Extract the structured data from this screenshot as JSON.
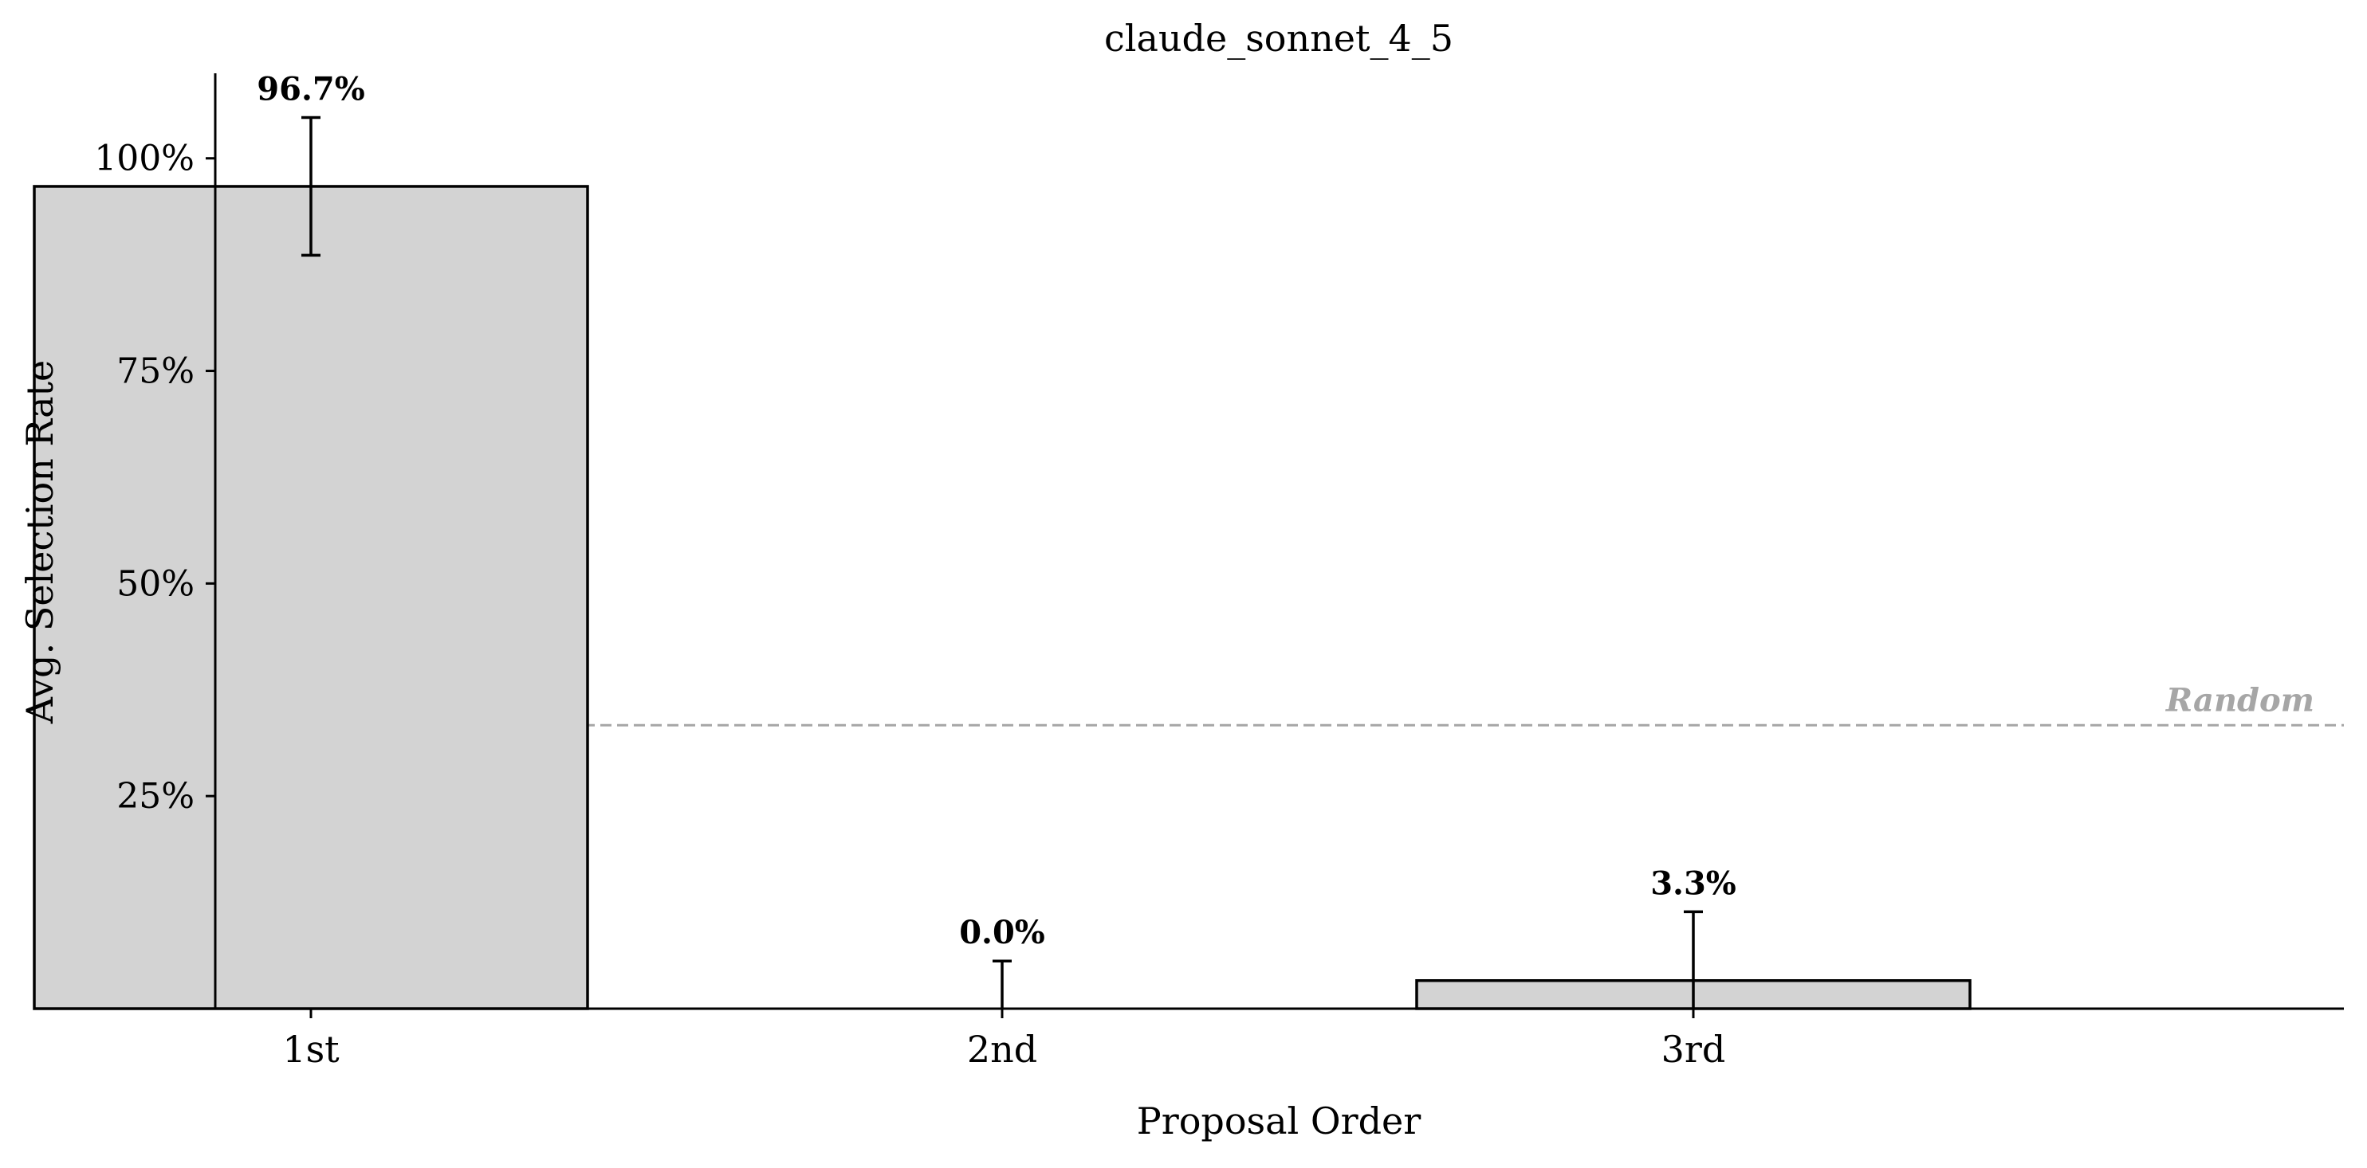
{
  "chart_data": {
    "type": "bar",
    "title": "claude_sonnet_4_5",
    "xlabel": "Proposal Order",
    "ylabel": "Avg. Selection Rate",
    "categories": [
      "1st",
      "2nd",
      "3rd"
    ],
    "values": [
      96.7,
      0.0,
      3.3
    ],
    "value_labels": [
      "96.7%",
      "0.0%",
      "3.3%"
    ],
    "error_bars": [
      {
        "low": 88.6,
        "high": 104.8
      },
      {
        "low": 0.0,
        "high": 5.6
      },
      {
        "low": 0.0,
        "high": 11.4
      }
    ],
    "ylim": [
      0,
      110
    ],
    "yticks": [
      25,
      50,
      75,
      100
    ],
    "ytick_labels": [
      "25%",
      "50%",
      "75%",
      "100%"
    ],
    "reference_line": {
      "value": 33.33,
      "label": "Random",
      "style": "dashed"
    },
    "grid": false,
    "legend": "none",
    "colors": {
      "bar_fill": "#d3d3d3",
      "bar_edge": "#000000",
      "reference_line": "#a6a6a6",
      "text": "#000000"
    }
  }
}
